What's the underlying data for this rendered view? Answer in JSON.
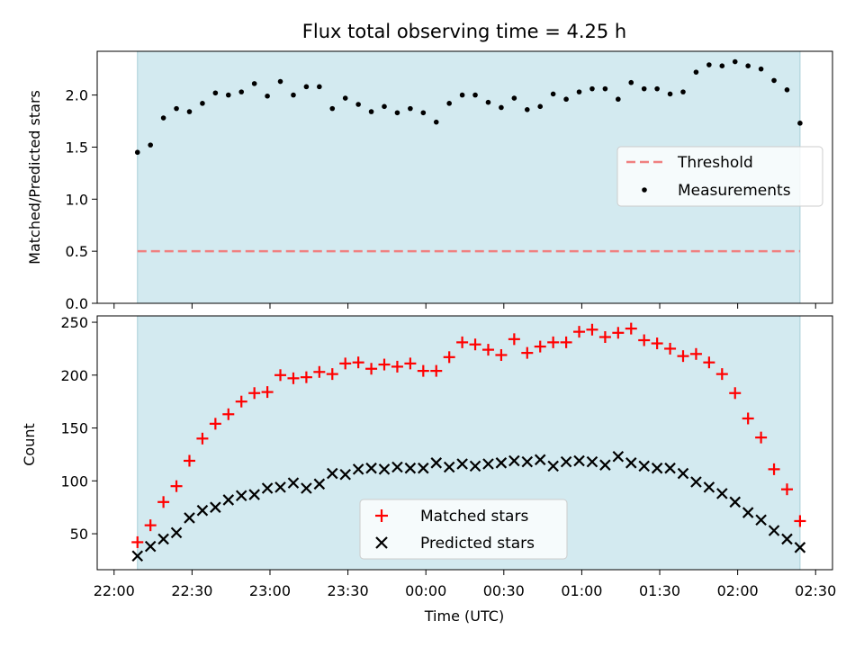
{
  "chart_data": [
    {
      "type": "scatter",
      "title": "Flux total observing time = 4.25 h",
      "ylabel": "Matched/Predicted stars",
      "ylim": [
        0,
        2.42
      ],
      "yticks": [
        "0.0",
        "0.5",
        "1.0",
        "1.5",
        "2.0"
      ],
      "shaded_region": {
        "start": "22:09",
        "end": "02:24",
        "color": "#d3eaf0"
      },
      "threshold": {
        "name": "Threshold",
        "value": 0.5,
        "color": "#f08080",
        "style": "dashed"
      },
      "legend": {
        "placement": "center-right",
        "entries": [
          "Threshold",
          "Measurements"
        ]
      },
      "series": [
        {
          "name": "Measurements",
          "marker": "dot",
          "color": "#000000",
          "x": [
            "22:09",
            "22:14",
            "22:19",
            "22:24",
            "22:29",
            "22:34",
            "22:39",
            "22:44",
            "22:49",
            "22:54",
            "22:59",
            "23:04",
            "23:09",
            "23:14",
            "23:19",
            "23:24",
            "23:29",
            "23:34",
            "23:39",
            "23:44",
            "23:49",
            "23:54",
            "23:59",
            "00:04",
            "00:09",
            "00:14",
            "00:19",
            "00:24",
            "00:29",
            "00:34",
            "00:39",
            "00:44",
            "00:49",
            "00:54",
            "00:59",
            "01:04",
            "01:09",
            "01:14",
            "01:19",
            "01:24",
            "01:29",
            "01:34",
            "01:39",
            "01:44",
            "01:49",
            "01:54",
            "01:59",
            "02:04",
            "02:09",
            "02:14",
            "02:19",
            "02:24"
          ],
          "values": [
            1.45,
            1.52,
            1.78,
            1.87,
            1.84,
            1.92,
            2.02,
            2.0,
            2.03,
            2.11,
            1.99,
            2.13,
            2.0,
            2.08,
            2.08,
            1.87,
            1.97,
            1.91,
            1.84,
            1.89,
            1.83,
            1.87,
            1.83,
            1.74,
            1.92,
            2.0,
            2.0,
            1.93,
            1.88,
            1.97,
            1.86,
            1.89,
            2.01,
            1.96,
            2.03,
            2.06,
            2.06,
            1.96,
            2.12,
            2.06,
            2.06,
            2.01,
            2.03,
            2.22,
            2.29,
            2.28,
            2.32,
            2.28,
            2.25,
            2.14,
            2.05,
            1.73
          ]
        }
      ]
    },
    {
      "type": "scatter",
      "xlabel": "Time (UTC)",
      "ylabel": "Count",
      "ylim": [
        16,
        256
      ],
      "yticks": [
        "50",
        "100",
        "150",
        "200",
        "250"
      ],
      "xticks": [
        "22:00",
        "22:30",
        "23:00",
        "23:30",
        "00:00",
        "00:30",
        "01:00",
        "01:30",
        "02:00",
        "02:30"
      ],
      "shaded_region": {
        "start": "22:09",
        "end": "02:24",
        "color": "#d3eaf0"
      },
      "legend": {
        "placement": "bottom-center",
        "entries": [
          "Matched stars",
          "Predicted stars"
        ]
      },
      "x": [
        "22:09",
        "22:14",
        "22:19",
        "22:24",
        "22:29",
        "22:34",
        "22:39",
        "22:44",
        "22:49",
        "22:54",
        "22:59",
        "23:04",
        "23:09",
        "23:14",
        "23:19",
        "23:24",
        "23:29",
        "23:34",
        "23:39",
        "23:44",
        "23:49",
        "23:54",
        "23:59",
        "00:04",
        "00:09",
        "00:14",
        "00:19",
        "00:24",
        "00:29",
        "00:34",
        "00:39",
        "00:44",
        "00:49",
        "00:54",
        "00:59",
        "01:04",
        "01:09",
        "01:14",
        "01:19",
        "01:24",
        "01:29",
        "01:34",
        "01:39",
        "01:44",
        "01:49",
        "01:54",
        "01:59",
        "02:04",
        "02:09",
        "02:14",
        "02:19",
        "02:24"
      ],
      "series": [
        {
          "name": "Matched stars",
          "marker": "plus",
          "color": "#ff0000",
          "values": [
            42,
            58,
            80,
            95,
            119,
            140,
            154,
            163,
            175,
            183,
            184,
            200,
            197,
            198,
            203,
            201,
            211,
            212,
            206,
            210,
            208,
            211,
            204,
            204,
            217,
            231,
            229,
            224,
            219,
            234,
            221,
            227,
            231,
            231,
            241,
            243,
            236,
            240,
            244,
            233,
            230,
            225,
            218,
            220,
            212,
            201,
            183,
            159,
            141,
            111,
            92,
            62
          ]
        },
        {
          "name": "Predicted stars",
          "marker": "x",
          "color": "#000000",
          "values": [
            29,
            38,
            45,
            51,
            65,
            72,
            75,
            82,
            86,
            87,
            93,
            94,
            98,
            93,
            97,
            107,
            106,
            111,
            112,
            111,
            113,
            112,
            112,
            117,
            113,
            116,
            114,
            116,
            117,
            119,
            118,
            120,
            114,
            118,
            119,
            118,
            115,
            123,
            117,
            114,
            112,
            112,
            107,
            99,
            94,
            88,
            80,
            70,
            63,
            53,
            45,
            37
          ]
        }
      ]
    }
  ]
}
